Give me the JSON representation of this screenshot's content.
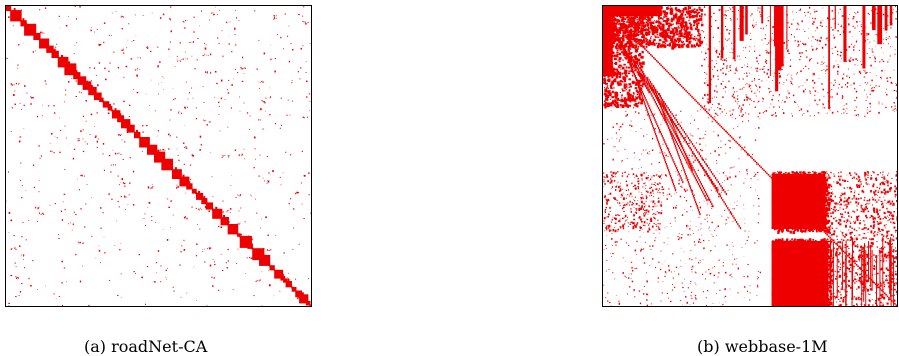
{
  "figure": {
    "panels": [
      {
        "id": "a",
        "caption": "(a) roadNet-CA",
        "matrix": "roadNet-CA"
      },
      {
        "id": "b",
        "caption": "(b) webbase-1M",
        "matrix": "webbase-1M"
      }
    ],
    "mark_color": "#ee0000"
  }
}
